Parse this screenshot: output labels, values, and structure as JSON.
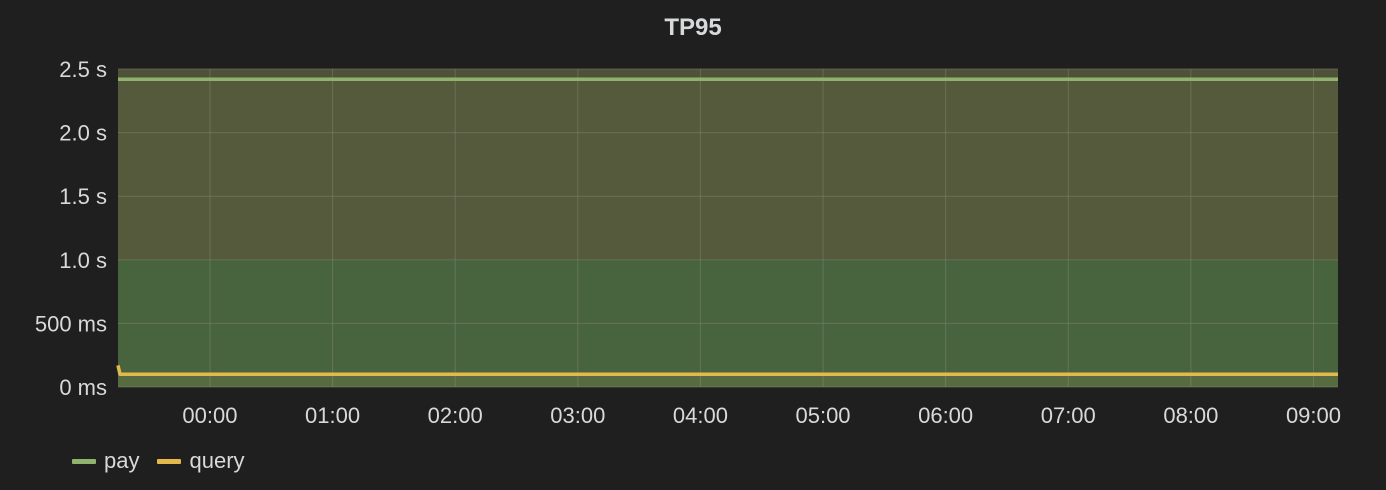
{
  "chart_data": {
    "type": "area",
    "title": "TP95",
    "xlabel": "",
    "ylabel": "",
    "x_ticks": [
      "00:00",
      "01:00",
      "02:00",
      "03:00",
      "04:00",
      "05:00",
      "06:00",
      "07:00",
      "08:00",
      "09:00"
    ],
    "y_ticks": [
      "0 ms",
      "500 ms",
      "1.0 s",
      "1.5 s",
      "2.0 s",
      "2.5 s"
    ],
    "y_tick_values": [
      0,
      0.5,
      1.0,
      1.5,
      2.0,
      2.5
    ],
    "xlim": [
      "-00:45",
      "09:12"
    ],
    "ylim": [
      0,
      2.5
    ],
    "grid": true,
    "legend_position": "bottom-left",
    "thresholds": [
      {
        "from": 0,
        "to": 1.0,
        "color": "#3f5c3a"
      },
      {
        "from": 1.0,
        "to": 2.5,
        "color": "#4f5138"
      }
    ],
    "series": [
      {
        "name": "pay",
        "color": "#8fb36c",
        "x": [
          "-00:45",
          "09:12"
        ],
        "values": [
          2.42,
          2.42
        ]
      },
      {
        "name": "query",
        "color": "#e5b84b",
        "x": [
          "-00:45",
          "-00:44",
          "-00:43",
          "09:12"
        ],
        "values": [
          0.17,
          0.1,
          0.1,
          0.1
        ]
      }
    ]
  }
}
